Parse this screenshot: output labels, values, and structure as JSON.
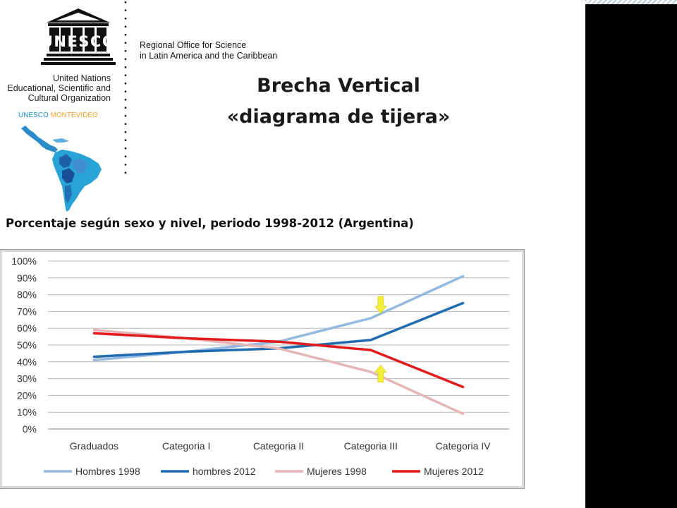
{
  "header": {
    "logo_word": "UNESCO",
    "office_line1": "Regional Office for Science",
    "office_line2": "in Latin America and the Caribbean",
    "un_line1": "United Nations",
    "un_line2": "Educational, Scientific and",
    "un_line3": "Cultural Organization",
    "montevideo_a": "UNESCO",
    "montevideo_b": "MONTEVIDEO"
  },
  "slide": {
    "title_line1": "Brecha Vertical",
    "title_line2": "«diagrama de tijera»",
    "subtitle": "Porcentaje según sexo y nivel, periodo 1998-2012 (Argentina)"
  },
  "colors": {
    "hombres_1998": "#95b8e0",
    "hombres_2012": "#1f6bb0",
    "mujeres_1998": "#e6b6b6",
    "mujeres_2012": "#e31a1c",
    "arrow": "#f2ee3a",
    "right_bar": "#000000"
  },
  "chart_data": {
    "type": "line",
    "categories": [
      "Graduados",
      "Categoria I",
      "Categoria II",
      "Categoria III",
      "Categoria IV"
    ],
    "y_tick_labels": [
      "100%",
      "90%",
      "80%",
      "70%",
      "60%",
      "50%",
      "40%",
      "30%",
      "20%",
      "10%",
      "0%"
    ],
    "ylim": [
      0,
      100
    ],
    "grid": true,
    "legend_position": "bottom",
    "series": [
      {
        "name": "Hombres 1998",
        "values": [
          41,
          46,
          52,
          66,
          91
        ]
      },
      {
        "name": "hombres 2012",
        "values": [
          43,
          46,
          48,
          53,
          75
        ]
      },
      {
        "name": "Mujeres 1998",
        "values": [
          59,
          54,
          48,
          34,
          9
        ]
      },
      {
        "name": "Mujeres 2012",
        "values": [
          57,
          54,
          52,
          47,
          25
        ]
      }
    ],
    "annotations": [
      {
        "type": "arrow-down",
        "category": "Categoria III",
        "value": 74
      },
      {
        "type": "arrow-up",
        "category": "Categoria III",
        "value": 33
      }
    ]
  }
}
